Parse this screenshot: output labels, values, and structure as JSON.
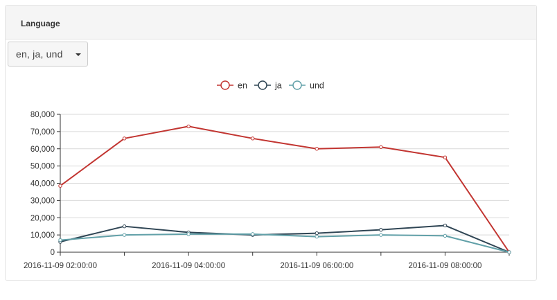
{
  "panel": {
    "title": "Language"
  },
  "selector": {
    "label": "en, ja, und"
  },
  "colors": {
    "en": "#c23531",
    "ja": "#2f4554",
    "und": "#61a0a8"
  },
  "chart_data": {
    "type": "line",
    "title": "",
    "xlabel": "",
    "ylabel": "",
    "ylim": [
      0,
      80000
    ],
    "yticks": [
      "0",
      "10,000",
      "20,000",
      "30,000",
      "40,000",
      "50,000",
      "60,000",
      "70,000",
      "80,000"
    ],
    "x": [
      "2016-11-09 02:00:00",
      "2016-11-09 03:00:00",
      "2016-11-09 04:00:00",
      "2016-11-09 05:00:00",
      "2016-11-09 06:00:00",
      "2016-11-09 07:00:00",
      "2016-11-09 08:00:00",
      "2016-11-09 09:00:00"
    ],
    "xtick_labels": [
      "2016-11-09 02:00:00",
      "2016-11-09 04:00:00",
      "2016-11-09 06:00:00",
      "2016-11-09 08:00:00"
    ],
    "grid": true,
    "legend": "top",
    "series": [
      {
        "name": "en",
        "values": [
          38500,
          66000,
          73000,
          66000,
          60000,
          61000,
          55000,
          0
        ]
      },
      {
        "name": "ja",
        "values": [
          6000,
          15000,
          11500,
          10000,
          11000,
          13000,
          15500,
          0
        ]
      },
      {
        "name": "und",
        "values": [
          7000,
          10000,
          10500,
          10500,
          9000,
          10000,
          9500,
          0
        ]
      }
    ]
  }
}
